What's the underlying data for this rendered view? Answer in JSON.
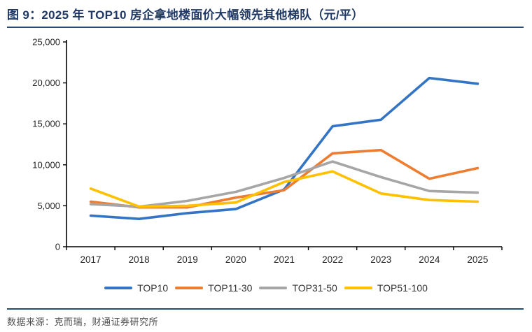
{
  "header": {
    "figure_title": "图 9：2025 年 TOP10 房企拿地楼面价大幅领先其他梯队（元/平）"
  },
  "footer": {
    "source": "数据来源：克而瑞，财通证券研究所"
  },
  "colors": {
    "title_text": "#1F3864",
    "rule": "#1F4E79",
    "axis": "#000000",
    "tick_label": "#262626",
    "legend_label": "#333333",
    "source_text": "#4D4D4D",
    "series_blue": "#3374C4",
    "series_orange": "#ED7D31",
    "series_gray": "#A6A6A6",
    "series_yellow": "#FFC000"
  },
  "chart_data": {
    "type": "line",
    "title": "2025年TOP10房企拿地楼面价大幅领先其他梯队",
    "unit": "元/平",
    "categories": [
      "2017",
      "2018",
      "2019",
      "2020",
      "2021",
      "2022",
      "2023",
      "2024",
      "2025"
    ],
    "series": [
      {
        "name": "TOP10",
        "color": "#3374C4",
        "values": [
          3800,
          3400,
          4100,
          4600,
          7000,
          14700,
          15500,
          20600,
          19900
        ]
      },
      {
        "name": "TOP11-30",
        "color": "#ED7D31",
        "values": [
          5500,
          4800,
          4800,
          6000,
          6900,
          11400,
          11800,
          8300,
          9600
        ]
      },
      {
        "name": "TOP31-50",
        "color": "#A6A6A6",
        "values": [
          5200,
          4900,
          5600,
          6700,
          8400,
          10400,
          8500,
          6800,
          6600
        ]
      },
      {
        "name": "TOP51-100",
        "color": "#FFC000",
        "values": [
          7100,
          4900,
          5000,
          5400,
          7900,
          9200,
          6500,
          5700,
          5500
        ]
      }
    ],
    "xlabel": "",
    "ylabel": "",
    "ylim": [
      0,
      25000
    ],
    "y_tick_step": 5000,
    "y_tick_labels": [
      "0",
      "5,000",
      "10,000",
      "15,000",
      "20,000",
      "25,000"
    ],
    "grid": false,
    "legend_position": "bottom"
  }
}
